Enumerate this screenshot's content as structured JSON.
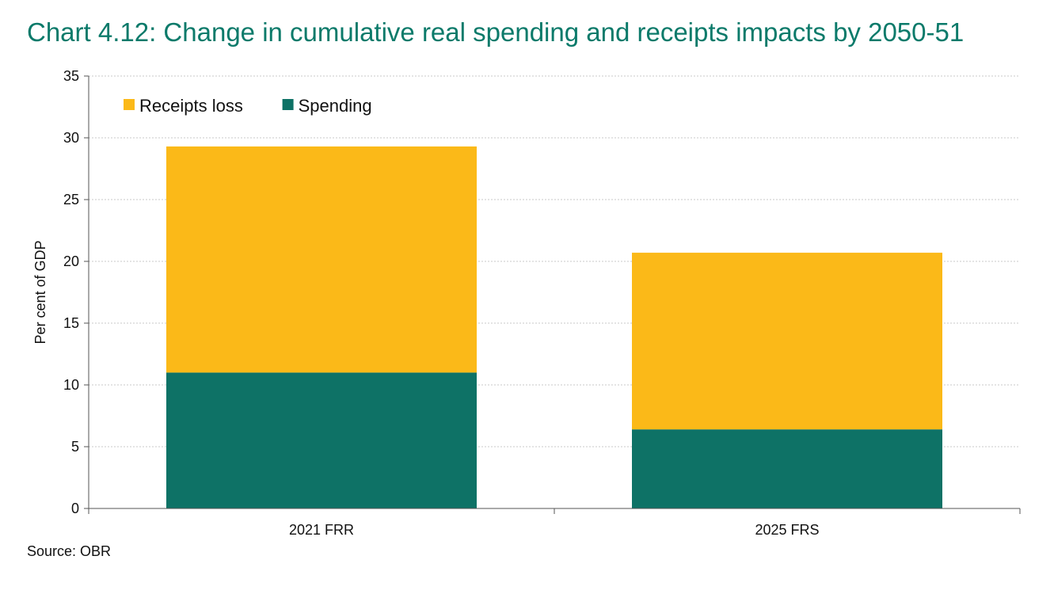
{
  "chart_data": {
    "type": "bar",
    "stacked": true,
    "title": "Chart 4.12: Change in cumulative real spending and receipts impacts by 2050-51",
    "xlabel": "",
    "ylabel": "Per cent of GDP",
    "ylim": [
      0,
      35
    ],
    "yticks": [
      0,
      5,
      10,
      15,
      20,
      25,
      30,
      35
    ],
    "grid": true,
    "legend_position": "top-left",
    "categories": [
      "2021 FRR",
      "2025 FRS"
    ],
    "series": [
      {
        "name": "Spending",
        "color": "#0e7266",
        "values": [
          11.0,
          6.4
        ]
      },
      {
        "name": "Receipts loss",
        "color": "#fbb918",
        "values": [
          18.3,
          14.3
        ]
      }
    ],
    "legend_order": [
      "Receipts loss",
      "Spending"
    ],
    "source": "Source: OBR"
  }
}
